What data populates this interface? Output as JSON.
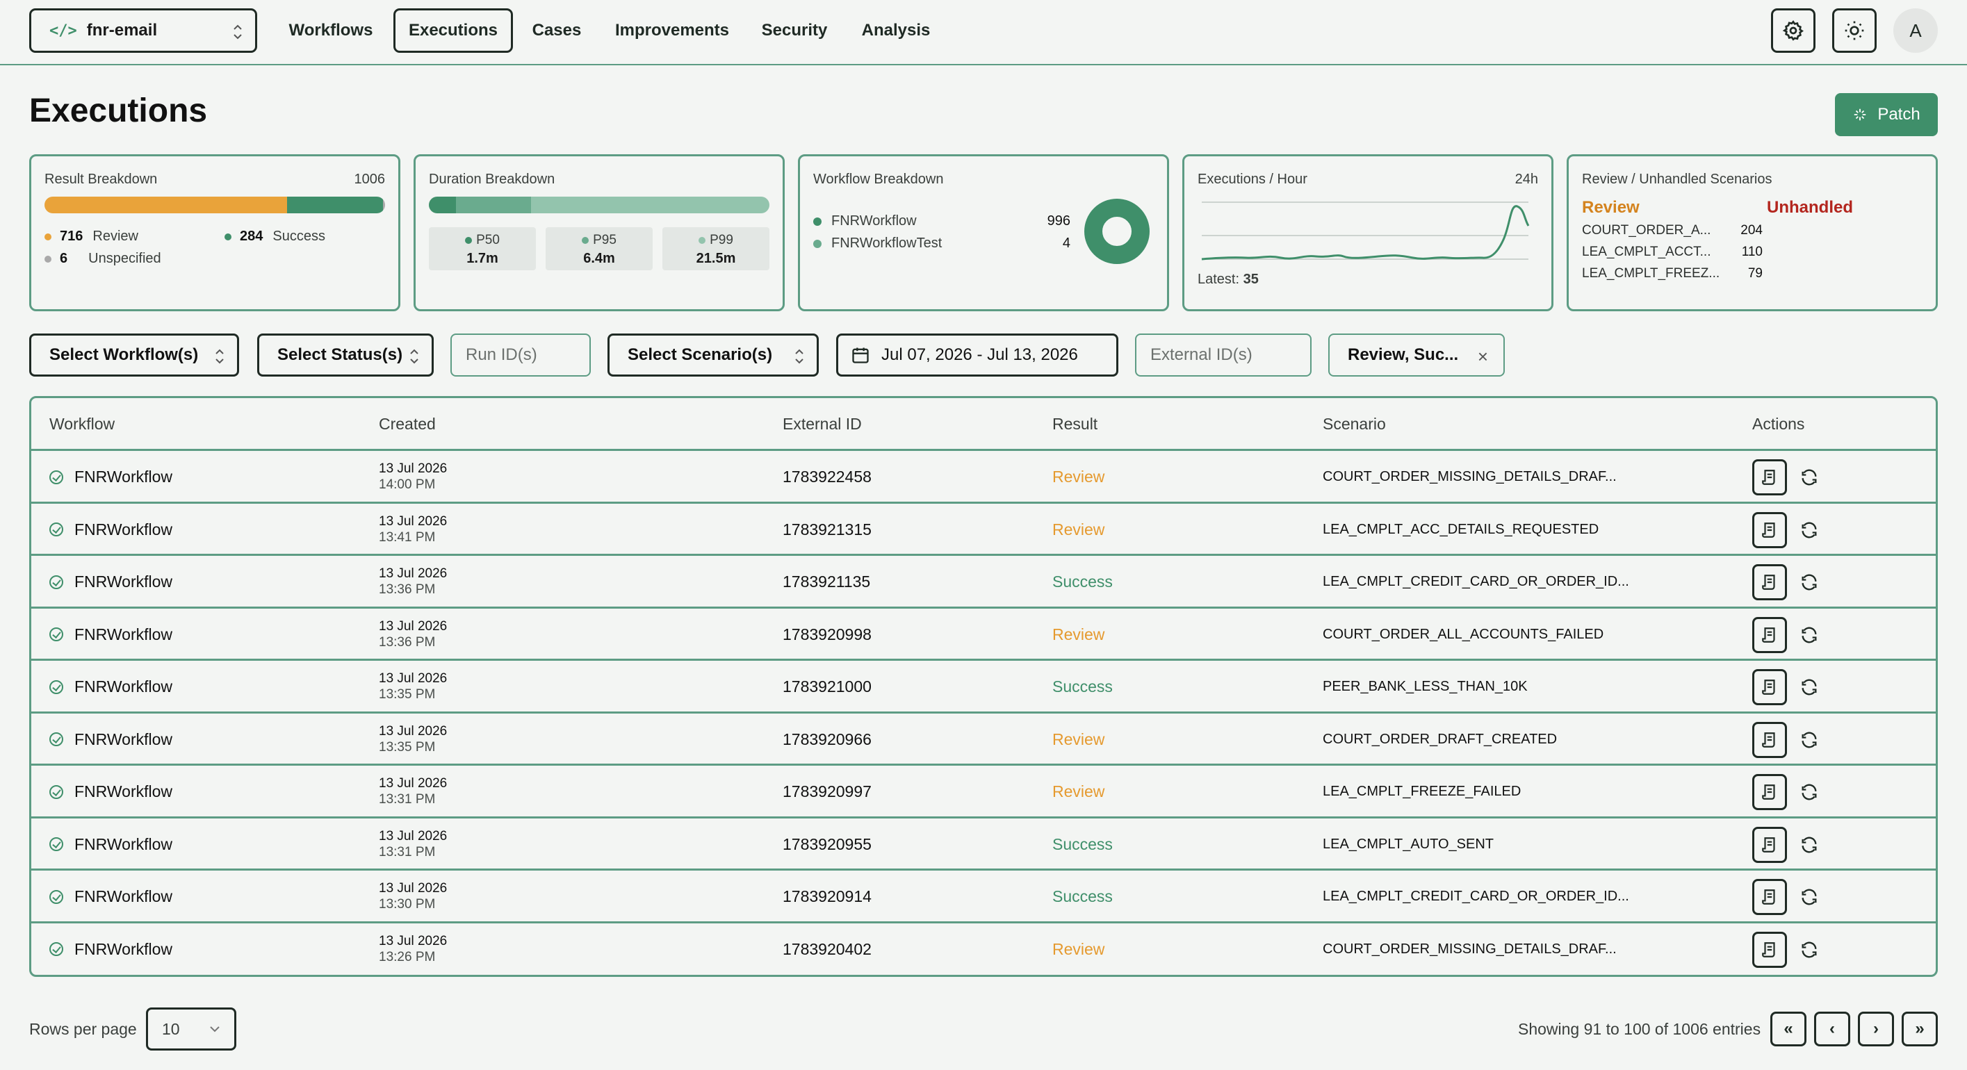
{
  "nav": {
    "project": "fnr-email",
    "tabs": [
      "Workflows",
      "Executions",
      "Cases",
      "Improvements",
      "Security",
      "Analysis"
    ],
    "active_tab": "Executions",
    "avatar": "A"
  },
  "page": {
    "title": "Executions",
    "patch_label": "Patch"
  },
  "cards": {
    "result": {
      "title": "Result Breakdown",
      "total": "1006",
      "review_count": "716",
      "review_label": "Review",
      "success_count": "284",
      "success_label": "Success",
      "unspecified_count": "6",
      "unspecified_label": "Unspecified",
      "fractions": {
        "review": 0.712,
        "success": 0.282,
        "unspecified": 0.006
      },
      "colors": {
        "review": "#e9a33a",
        "success": "#3f8f6a",
        "unspecified": "#a9a9a9"
      }
    },
    "duration": {
      "title": "Duration Breakdown",
      "p50_label": "P50",
      "p50": "1.7m",
      "p95_label": "P95",
      "p95": "6.4m",
      "p99_label": "P99",
      "p99": "21.5m",
      "colors": {
        "p50": "#3f8f6a",
        "p95": "#6aab8e",
        "p99": "#93c4ad"
      }
    },
    "workflow": {
      "title": "Workflow Breakdown",
      "items": [
        {
          "name": "FNRWorkflow",
          "value": "996",
          "color": "#3f8f6a"
        },
        {
          "name": "FNRWorkflowTest",
          "value": "4",
          "color": "#6aab8e"
        }
      ]
    },
    "hourly": {
      "title": "Executions / Hour",
      "range": "24h",
      "latest_label": "Latest:",
      "latest_value": "35"
    },
    "review": {
      "title": "Review / Unhandled Scenarios",
      "review_head": "Review",
      "unhandled_head": "Unhandled",
      "items": [
        {
          "name": "COURT_ORDER_A...",
          "count": "204"
        },
        {
          "name": "LEA_CMPLT_ACCT...",
          "count": "110"
        },
        {
          "name": "LEA_CMPLT_FREEZ...",
          "count": "79"
        }
      ]
    }
  },
  "filters": {
    "workflows": "Select Workflow(s)",
    "status": "Select Status(s)",
    "run_placeholder": "Run ID(s)",
    "scenarios": "Select Scenario(s)",
    "date_range": "Jul 07, 2026 - Jul 13, 2026",
    "external_placeholder": "External ID(s)",
    "result_filter": "Review, Suc..."
  },
  "table": {
    "headers": [
      "Workflow",
      "Created",
      "External ID",
      "Result",
      "Scenario",
      "Actions"
    ],
    "rows": [
      {
        "workflow": "FNRWorkflow",
        "date": "13 Jul 2026",
        "time": "14:00 PM",
        "external_id": "1783922458",
        "result": "Review",
        "scenario": "COURT_ORDER_MISSING_DETAILS_DRAF..."
      },
      {
        "workflow": "FNRWorkflow",
        "date": "13 Jul 2026",
        "time": "13:41 PM",
        "external_id": "1783921315",
        "result": "Review",
        "scenario": "LEA_CMPLT_ACC_DETAILS_REQUESTED"
      },
      {
        "workflow": "FNRWorkflow",
        "date": "13 Jul 2026",
        "time": "13:36 PM",
        "external_id": "1783921135",
        "result": "Success",
        "scenario": "LEA_CMPLT_CREDIT_CARD_OR_ORDER_ID..."
      },
      {
        "workflow": "FNRWorkflow",
        "date": "13 Jul 2026",
        "time": "13:36 PM",
        "external_id": "1783920998",
        "result": "Review",
        "scenario": "COURT_ORDER_ALL_ACCOUNTS_FAILED"
      },
      {
        "workflow": "FNRWorkflow",
        "date": "13 Jul 2026",
        "time": "13:35 PM",
        "external_id": "1783921000",
        "result": "Success",
        "scenario": "PEER_BANK_LESS_THAN_10K"
      },
      {
        "workflow": "FNRWorkflow",
        "date": "13 Jul 2026",
        "time": "13:35 PM",
        "external_id": "1783920966",
        "result": "Review",
        "scenario": "COURT_ORDER_DRAFT_CREATED"
      },
      {
        "workflow": "FNRWorkflow",
        "date": "13 Jul 2026",
        "time": "13:31 PM",
        "external_id": "1783920997",
        "result": "Review",
        "scenario": "LEA_CMPLT_FREEZE_FAILED"
      },
      {
        "workflow": "FNRWorkflow",
        "date": "13 Jul 2026",
        "time": "13:31 PM",
        "external_id": "1783920955",
        "result": "Success",
        "scenario": "LEA_CMPLT_AUTO_SENT"
      },
      {
        "workflow": "FNRWorkflow",
        "date": "13 Jul 2026",
        "time": "13:30 PM",
        "external_id": "1783920914",
        "result": "Success",
        "scenario": "LEA_CMPLT_CREDIT_CARD_OR_ORDER_ID..."
      },
      {
        "workflow": "FNRWorkflow",
        "date": "13 Jul 2026",
        "time": "13:26 PM",
        "external_id": "1783920402",
        "result": "Review",
        "scenario": "COURT_ORDER_MISSING_DETAILS_DRAF..."
      }
    ]
  },
  "footer": {
    "rows_per_page_label": "Rows per page",
    "rows_per_page": "10",
    "showing": "Showing 91 to 100 of 1006 entries",
    "first": "«",
    "prev": "‹",
    "next": "›",
    "last": "»"
  }
}
